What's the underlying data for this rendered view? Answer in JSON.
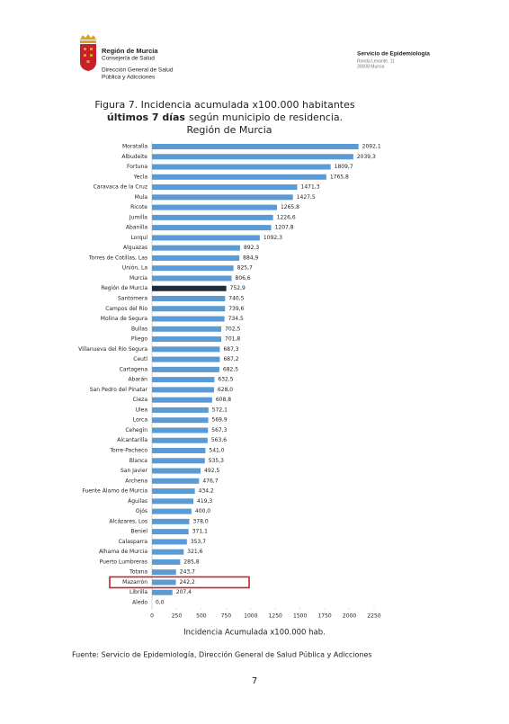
{
  "header": {
    "org": "Región de Murcia",
    "dept": "Consejería de Salud",
    "direction": [
      "Dirección General de Salud",
      "Pública y Adicciones"
    ],
    "service": "Servicio de Epidemiología",
    "address": [
      "Ronda Levante, 11",
      "30008 Murcia"
    ]
  },
  "chart_data": {
    "type": "hbar",
    "title": "Figura 7. Incidencia acumulada x100.000 habitantes",
    "title_bold": "últimos 7 días",
    "title_rest": "según municipio de residencia.",
    "subtitle": "Región de Murcia",
    "xlabel": "Incidencia Acumulada x100.000 hab.",
    "categories": [
      "Moratalla",
      "Albudeite",
      "Fortuna",
      "Yecla",
      "Caravaca de la Cruz",
      "Mula",
      "Ricote",
      "Jumilla",
      "Abanilla",
      "Lorquí",
      "Alguazas",
      "Torres de Cotillas, Las",
      "Unión, La",
      "Murcia",
      "Región de Murcia",
      "Santomera",
      "Campos del Río",
      "Molina de Segura",
      "Bullas",
      "Pliego",
      "Villanueva del Río Segura",
      "Ceutí",
      "Cartagena",
      "Abarán",
      "San Pedro del Pinatar",
      "Cieza",
      "Ulea",
      "Lorca",
      "Cehegín",
      "Alcantarilla",
      "Torre-Pacheco",
      "Blanca",
      "San Javier",
      "Archena",
      "Fuente Álamo de Murcia",
      "Águilas",
      "Ojós",
      "Alcázares, Los",
      "Beniel",
      "Calasparra",
      "Alhama de Murcia",
      "Puerto Lumbreras",
      "Totana",
      "Mazarrón",
      "Librilla",
      "Aledo"
    ],
    "values": [
      2092.1,
      2039.3,
      1809.7,
      1765.8,
      1471.3,
      1427.5,
      1265.8,
      1226.6,
      1207.8,
      1092.3,
      892.3,
      884.9,
      825.7,
      806.6,
      752.9,
      740.5,
      739.6,
      734.5,
      702.5,
      701.8,
      687.3,
      687.2,
      682.5,
      632.5,
      628.0,
      608.8,
      572.1,
      569.9,
      567.3,
      563.6,
      541.0,
      535.3,
      492.5,
      476.7,
      434.2,
      419.3,
      400.0,
      378.0,
      371.1,
      353.7,
      321.6,
      285.8,
      243.7,
      242.2,
      207.4,
      0.0
    ],
    "value_labels": [
      "2092,1",
      "2039,3",
      "1809,7",
      "1765,8",
      "1471,3",
      "1427,5",
      "1265,8",
      "1226,6",
      "1207,8",
      "1092,3",
      "892,3",
      "884,9",
      "825,7",
      "806,6",
      "752,9",
      "740,5",
      "739,6",
      "734,5",
      "702,5",
      "701,8",
      "687,3",
      "687,2",
      "682,5",
      "632,5",
      "628,0",
      "608,8",
      "572,1",
      "569,9",
      "567,3",
      "563,6",
      "541,0",
      "535,3",
      "492,5",
      "476,7",
      "434,2",
      "419,3",
      "400,0",
      "378,0",
      "371,1",
      "353,7",
      "321,6",
      "285,8",
      "243,7",
      "242,2",
      "207,4",
      "0,0"
    ],
    "color": "#5b9bd5",
    "emphasis": {
      "index": 14,
      "color": "#1f2b3c"
    },
    "highlight_box": {
      "index": 43,
      "color": "#c0282d"
    },
    "xlim": [
      0,
      2250
    ],
    "xticks": [
      0,
      250,
      500,
      750,
      1000,
      1250,
      1500,
      1750,
      2000,
      2250
    ]
  },
  "footer": {
    "source": "Fuente: Servicio de Epidemiología, Dirección General de Salud Pública y Adicciones",
    "page": 7
  }
}
